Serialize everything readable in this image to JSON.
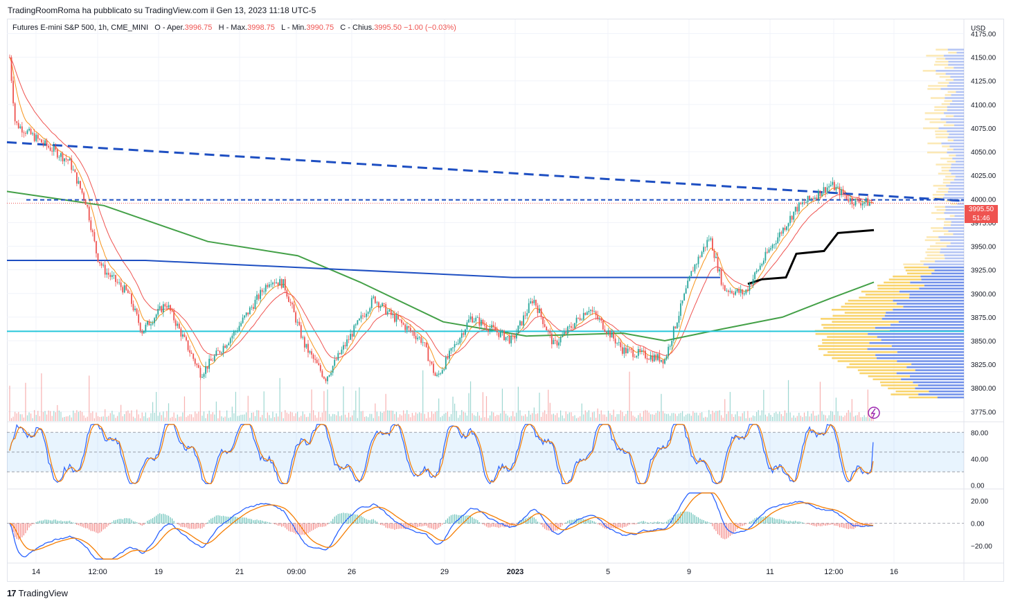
{
  "header": {
    "publisher_text": "TradingRoomRoma ha pubblicato su TradingView.com il Gen 13, 2023 11:18 UTC-5"
  },
  "legend": {
    "symbol": "Futures E-mini S&P 500, 1h, CME_MINI",
    "open_label": "O - Aper.",
    "open_value": "3996.75",
    "high_label": "H - Max.",
    "high_value": "3998.75",
    "low_label": "L - Min.",
    "low_value": "3990.75",
    "close_label": "C - Chius.",
    "close_value": "3995.50",
    "change": "−1.00 (−0.03%)"
  },
  "price_axis": {
    "currency": "USD",
    "current_price": "3995.50",
    "countdown": "51:46"
  },
  "footer": {
    "brand": "TradingView"
  },
  "colors": {
    "up": "#26a69a",
    "down": "#ef5350",
    "ema_orange": "#f7931a",
    "ema_red": "#ef5350",
    "ma_green": "#43a047",
    "trend_blue": "#1e4fc2",
    "cyan_level": "#26c6da",
    "vwap_black": "#000000",
    "vp_blue": "#5b7fe6",
    "vp_yellow": "#f7c948",
    "stoch_k": "#2962ff",
    "stoch_d": "#f57c00",
    "macd_line": "#2962ff",
    "signal_line": "#f57c00"
  },
  "chart_data": [
    {
      "type": "candlestick",
      "name": "Futures E-mini S&P 500, 1h, CME_MINI",
      "x_tick_labels": [
        "14",
        "12:00",
        "19",
        "21",
        "09:00",
        "26",
        "29",
        "2023",
        "5",
        "9",
        "11",
        "12:00",
        "16"
      ],
      "y_tick_labels": [
        "4175.00",
        "4150.00",
        "4125.00",
        "4100.00",
        "4075.00",
        "4050.00",
        "4025.00",
        "4000.00",
        "3975.00",
        "3950.00",
        "3925.00",
        "3900.00",
        "3875.00",
        "3850.00",
        "3825.00",
        "3800.00",
        "3775.00"
      ],
      "ylim": [
        3765,
        4190
      ],
      "close_path_keypoints": [
        {
          "x": "14",
          "y": 4150
        },
        {
          "x": "14",
          "y": 4060
        },
        {
          "x": "14",
          "y": 4070
        },
        {
          "x": "12:00",
          "y": 4035
        },
        {
          "x": "12:00",
          "y": 3990
        },
        {
          "x": "12:00",
          "y": 3925
        },
        {
          "x": "19",
          "y": 3920
        },
        {
          "x": "19",
          "y": 3865
        },
        {
          "x": "19",
          "y": 3885
        },
        {
          "x": "21",
          "y": 3815
        },
        {
          "x": "21",
          "y": 3860
        },
        {
          "x": "09:00",
          "y": 3915
        },
        {
          "x": "09:00",
          "y": 3810
        },
        {
          "x": "26",
          "y": 3860
        },
        {
          "x": "26",
          "y": 3895
        },
        {
          "x": "29",
          "y": 3855
        },
        {
          "x": "29",
          "y": 3810
        },
        {
          "x": "29",
          "y": 3875
        },
        {
          "x": "2023",
          "y": 3855
        },
        {
          "x": "2023",
          "y": 3895
        },
        {
          "x": "5",
          "y": 3840
        },
        {
          "x": "5",
          "y": 3880
        },
        {
          "x": "5",
          "y": 3835
        },
        {
          "x": "9",
          "y": 3925
        },
        {
          "x": "9",
          "y": 3960
        },
        {
          "x": "9",
          "y": 3900
        },
        {
          "x": "11",
          "y": 3940
        },
        {
          "x": "11",
          "y": 3985
        },
        {
          "x": "12:00",
          "y": 4015
        },
        {
          "x": "12:00",
          "y": 3998
        },
        {
          "x": "16",
          "y": 3995.5
        }
      ],
      "overlays": [
        {
          "name": "down trendline (dashed)",
          "from": 4060,
          "to": 3998
        },
        {
          "name": "horizontal dashed level",
          "value": 3999
        },
        {
          "name": "descending solid line",
          "from": 3935,
          "to": 3917
        },
        {
          "name": "cyan horizontal level",
          "value": 3860
        },
        {
          "name": "200-period MA (green)",
          "from": 4008,
          "to": 3912
        },
        {
          "name": "anchored VWAP (black)",
          "from": 3910,
          "to": 3967
        }
      ],
      "volume_profile": "right side, peak volume near 3835-3875"
    },
    {
      "type": "line",
      "name": "Stochastic",
      "y_tick_labels": [
        "80.00",
        "40.00",
        "0.00"
      ],
      "ylim": [
        -5,
        95
      ],
      "bands": [
        20,
        80
      ],
      "last_value": 65
    },
    {
      "type": "line",
      "name": "MACD",
      "y_tick_labels": [
        "20.00",
        "0.00",
        "−20.00"
      ],
      "ylim": [
        -35,
        30
      ],
      "last_value": 0
    }
  ]
}
